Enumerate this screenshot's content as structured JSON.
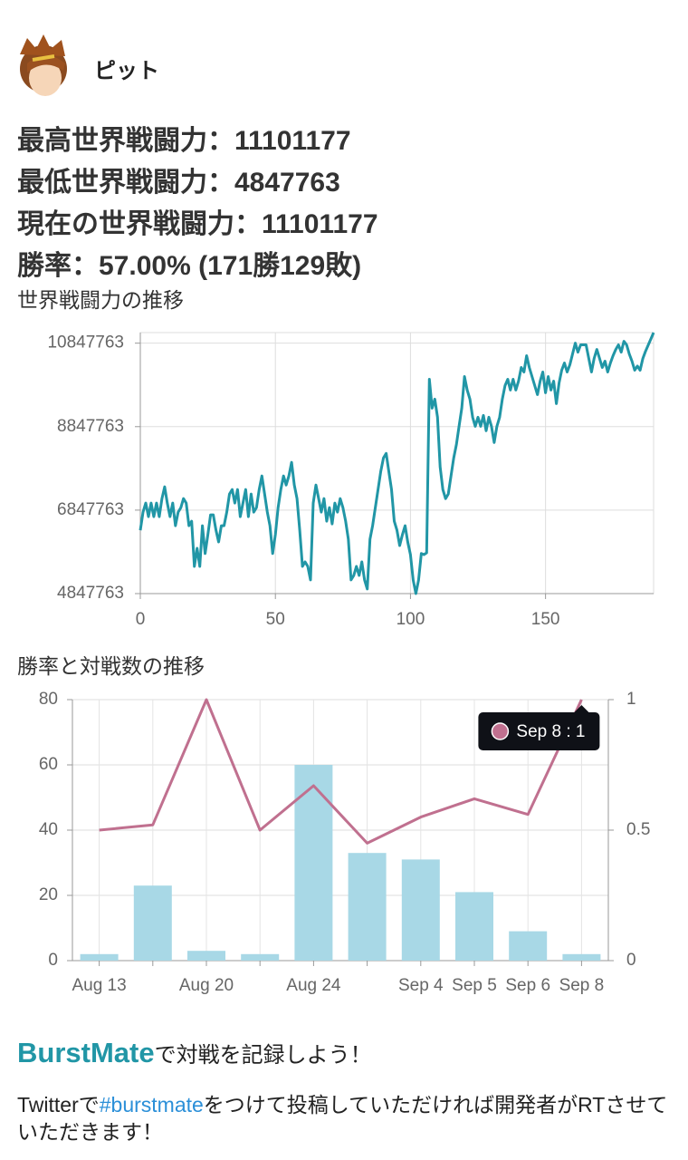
{
  "profile": {
    "name": "ピット"
  },
  "stats": [
    "最高世界戦闘力：11101177",
    "最低世界戦闘力：4847763",
    "現在の世界戦闘力：11101177",
    "勝率：57.00% (171勝129敗)"
  ],
  "chart_data": [
    {
      "type": "line",
      "title": "世界戦闘力の推移",
      "color": "#2196a6",
      "grid": true,
      "xlim": [
        0,
        190
      ],
      "xticks": [
        0,
        50,
        100,
        150
      ],
      "ylim": [
        4847763,
        11101177
      ],
      "yticks": [
        4847763,
        6847763,
        8847763,
        10847763
      ],
      "x": [
        0,
        1,
        2,
        3,
        4,
        5,
        6,
        7,
        8,
        9,
        10,
        11,
        12,
        13,
        14,
        15,
        16,
        17,
        18,
        19,
        20,
        21,
        22,
        23,
        24,
        25,
        26,
        27,
        28,
        29,
        30,
        31,
        32,
        33,
        34,
        35,
        36,
        37,
        38,
        39,
        40,
        41,
        42,
        43,
        44,
        45,
        46,
        47,
        48,
        49,
        50,
        51,
        52,
        53,
        54,
        55,
        56,
        57,
        58,
        59,
        60,
        61,
        62,
        63,
        64,
        65,
        66,
        67,
        68,
        69,
        70,
        71,
        72,
        73,
        74,
        75,
        76,
        77,
        78,
        79,
        80,
        81,
        82,
        83,
        84,
        85,
        86,
        87,
        88,
        89,
        90,
        91,
        92,
        93,
        94,
        95,
        96,
        97,
        98,
        99,
        100,
        101,
        102,
        103,
        104,
        105,
        106,
        107,
        108,
        109,
        110,
        111,
        112,
        113,
        114,
        115,
        116,
        117,
        118,
        119,
        120,
        121,
        122,
        123,
        124,
        125,
        126,
        127,
        128,
        129,
        130,
        131,
        132,
        133,
        134,
        135,
        136,
        137,
        138,
        139,
        140,
        141,
        142,
        143,
        144,
        145,
        146,
        147,
        148,
        149,
        150,
        151,
        152,
        153,
        154,
        155,
        156,
        157,
        158,
        159,
        160,
        161,
        162,
        163,
        164,
        165,
        166,
        167,
        168,
        169,
        170,
        171,
        172,
        173,
        174,
        175,
        176,
        177,
        178,
        179,
        180,
        181,
        182,
        183,
        184,
        185,
        186,
        187,
        188,
        189,
        190
      ],
      "values": [
        6366000,
        6800000,
        7016000,
        6691000,
        7016000,
        6691000,
        7016000,
        6691000,
        7124000,
        7406000,
        7016000,
        6691000,
        7016000,
        6475000,
        6800000,
        6908000,
        7124000,
        7016000,
        6475000,
        6583000,
        5500000,
        5933000,
        5500000,
        6475000,
        5808000,
        6258000,
        6735000,
        6735000,
        6366000,
        6085000,
        6475000,
        6475000,
        6800000,
        7233000,
        7341000,
        7016000,
        7341000,
        6691000,
        7016000,
        7341000,
        6691000,
        7233000,
        6800000,
        6908000,
        7341000,
        7666000,
        7233000,
        6800000,
        6475000,
        5808000,
        6264000,
        6908000,
        7341000,
        7666000,
        7449000,
        7666000,
        7991000,
        7449000,
        7124000,
        6366000,
        5500000,
        5608000,
        5500000,
        5175000,
        7016000,
        7449000,
        7124000,
        6800000,
        7124000,
        6583000,
        6908000,
        6518000,
        7016000,
        6800000,
        7124000,
        6908000,
        6583000,
        6150000,
        5175000,
        5283000,
        5500000,
        5283000,
        5608000,
        5175000,
        4958000,
        6150000,
        6475000,
        6908000,
        7341000,
        7774000,
        8099000,
        8207000,
        7774000,
        7341000,
        6583000,
        6366000,
        5998000,
        6258000,
        6475000,
        6085000,
        5782000,
        5175000,
        4847763,
        5175000,
        5808000,
        5782000,
        5825000,
        9984000,
        9290000,
        9507000,
        9074000,
        7883000,
        7341000,
        7124000,
        7233000,
        7666000,
        8099000,
        8424000,
        8857000,
        9290000,
        10049000,
        9724000,
        9507000,
        9074000,
        8857000,
        9074000,
        8857000,
        9117000,
        8749000,
        9074000,
        8857000,
        8467000,
        8857000,
        9074000,
        9507000,
        9832000,
        9984000,
        9724000,
        9984000,
        9724000,
        9940000,
        10265000,
        10157000,
        10547000,
        10265000,
        10049000,
        9832000,
        9615000,
        9940000,
        10157000,
        9659000,
        10049000,
        9724000,
        9940000,
        9399000,
        9897000,
        10200000,
        10373000,
        10157000,
        10330000,
        10590000,
        10850000,
        10633000,
        10807000,
        10807000,
        10807000,
        10482000,
        10157000,
        10482000,
        10698000,
        10482000,
        10265000,
        10417000,
        10157000,
        10373000,
        10547000,
        10698000,
        10807000,
        10633000,
        10893000,
        10807000,
        10590000,
        10417000,
        10200000,
        10300000,
        10200000,
        10480000,
        10650000,
        10800000,
        10950000,
        11101177
      ]
    },
    {
      "type": "bar",
      "title": "勝率と対戦数の推移",
      "grid": true,
      "categories": [
        "Aug 13",
        null,
        "Aug 20",
        null,
        "Aug 24",
        null,
        "Sep 4",
        "Sep 5",
        "Sep 6",
        "Sep 8"
      ],
      "ylim": [
        0,
        80
      ],
      "yticks": [
        0,
        20,
        40,
        60,
        80
      ],
      "y2lim": [
        0,
        1
      ],
      "y2ticks": [
        0,
        0.5,
        1
      ],
      "series": [
        {
          "type": "bar",
          "color": "#a8d8e6",
          "values": [
            2,
            23,
            3,
            2,
            60,
            33,
            31,
            21,
            9,
            2
          ]
        },
        {
          "type": "line",
          "color": "#c0708f",
          "axis": "y2",
          "values": [
            0.5,
            0.52,
            1,
            0.5,
            0.67,
            0.45,
            0.55,
            0.62,
            0.56,
            1
          ]
        }
      ],
      "tooltip": "Sep 8 : 1"
    }
  ],
  "footer": {
    "brand": "BurstMate",
    "tagline": "で対戦を記録しよう！",
    "parts": [
      "Twitterで",
      "#burstmate",
      "をつけて投稿していただければ開発者がRTさせていただきます！"
    ]
  }
}
